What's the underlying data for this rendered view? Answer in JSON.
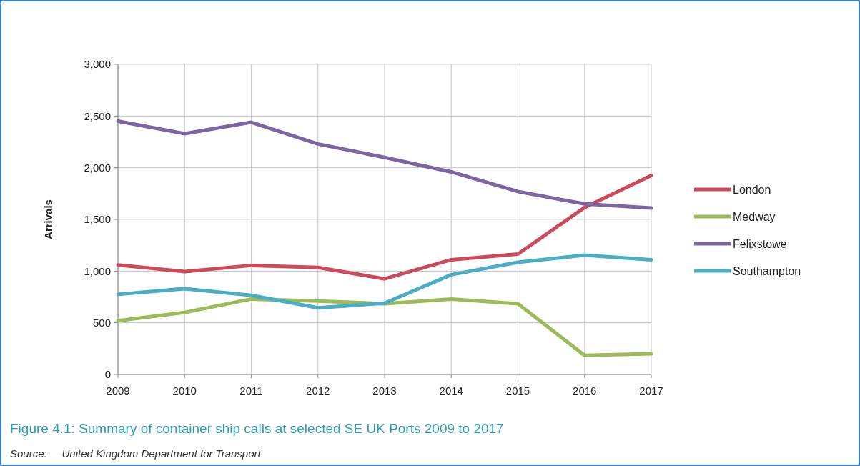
{
  "chart_data": {
    "type": "line",
    "title": "Figure 4.1: Summary of container ship calls at selected SE UK Ports 2009 to 2017",
    "ylabel": "Arrivals",
    "annotations": [
      "Source:     United Kingdom Department for Transport"
    ],
    "categories": [
      "2009",
      "2010",
      "2011",
      "2012",
      "2013",
      "2014",
      "2015",
      "2016",
      "2017"
    ],
    "series": [
      {
        "name": "London",
        "color": "#cc4a5c",
        "values": [
          1060,
          995,
          1055,
          1035,
          925,
          1110,
          1165,
          1615,
          1925
        ]
      },
      {
        "name": "Medway",
        "color": "#9bbb59",
        "values": [
          520,
          600,
          730,
          710,
          685,
          730,
          685,
          185,
          200
        ]
      },
      {
        "name": "Felixstowe",
        "color": "#8064a2",
        "values": [
          2450,
          2330,
          2440,
          2230,
          2100,
          1960,
          1770,
          1650,
          1610
        ]
      },
      {
        "name": "Southampton",
        "color": "#4bacc6",
        "values": [
          775,
          830,
          765,
          645,
          690,
          965,
          1085,
          1155,
          1110
        ]
      }
    ],
    "ylim": [
      0,
      3000
    ],
    "yticks": [
      {
        "value": 0,
        "label": "0"
      },
      {
        "value": 500,
        "label": "500"
      },
      {
        "value": 1000,
        "label": "1,000"
      },
      {
        "value": 1500,
        "label": "1,500"
      },
      {
        "value": 2000,
        "label": "2,000"
      },
      {
        "value": 2500,
        "label": "2,500"
      },
      {
        "value": 3000,
        "label": "3,000"
      }
    ],
    "grid": true,
    "legend": "right",
    "marker": "none",
    "line_style": "solid"
  }
}
